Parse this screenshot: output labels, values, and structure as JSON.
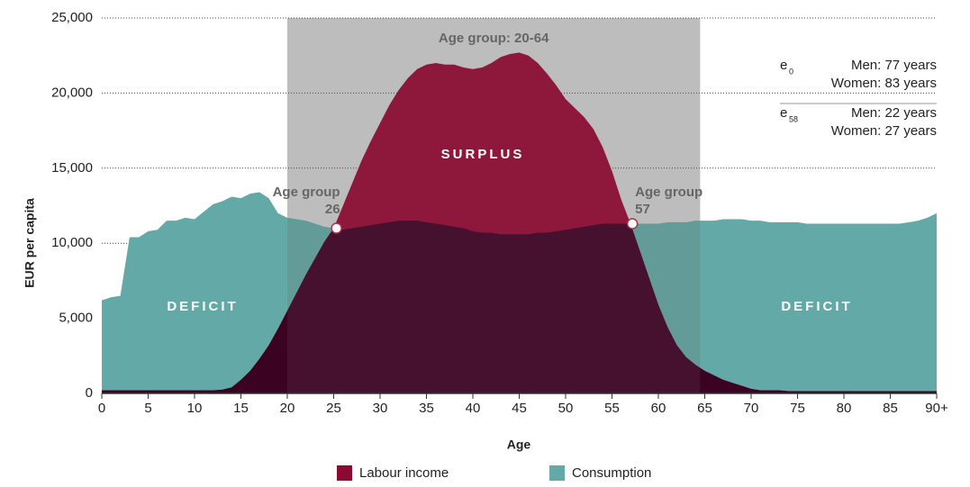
{
  "chart_data": {
    "type": "area",
    "x_label": "Age",
    "y_label": "EUR per capita",
    "x": [
      0,
      1,
      2,
      3,
      4,
      5,
      6,
      7,
      8,
      9,
      10,
      11,
      12,
      13,
      14,
      15,
      16,
      17,
      18,
      19,
      20,
      21,
      22,
      23,
      24,
      25,
      26,
      27,
      28,
      29,
      30,
      31,
      32,
      33,
      34,
      35,
      36,
      37,
      38,
      39,
      40,
      41,
      42,
      43,
      44,
      45,
      46,
      47,
      48,
      49,
      50,
      51,
      52,
      53,
      54,
      55,
      56,
      57,
      58,
      59,
      60,
      61,
      62,
      63,
      64,
      65,
      66,
      67,
      68,
      69,
      70,
      71,
      72,
      73,
      74,
      75,
      76,
      77,
      78,
      79,
      80,
      81,
      82,
      83,
      84,
      85,
      86,
      87,
      88,
      89,
      90
    ],
    "series": [
      {
        "name": "Consumption",
        "color": "#62a9a7",
        "values": [
          6200,
          6400,
          6500,
          10400,
          10400,
          10800,
          10900,
          11500,
          11500,
          11700,
          11600,
          12100,
          12600,
          12800,
          13100,
          13000,
          13300,
          13400,
          13000,
          12000,
          11700,
          11600,
          11500,
          11300,
          11100,
          11000,
          10900,
          11000,
          11100,
          11200,
          11300,
          11400,
          11500,
          11500,
          11500,
          11400,
          11300,
          11200,
          11100,
          11000,
          10800,
          10700,
          10700,
          10600,
          10600,
          10600,
          10600,
          10700,
          10700,
          10800,
          10900,
          11000,
          11100,
          11200,
          11300,
          11300,
          11300,
          11300,
          11300,
          11300,
          11300,
          11400,
          11400,
          11400,
          11500,
          11500,
          11500,
          11600,
          11600,
          11600,
          11500,
          11500,
          11400,
          11400,
          11400,
          11400,
          11300,
          11300,
          11300,
          11300,
          11300,
          11300,
          11300,
          11300,
          11300,
          11300,
          11300,
          11400,
          11500,
          11700,
          12000
        ]
      },
      {
        "name": "Labour income",
        "color": "#8c0a32",
        "values": [
          200,
          200,
          200,
          200,
          200,
          200,
          200,
          200,
          200,
          200,
          200,
          200,
          200,
          250,
          400,
          900,
          1500,
          2300,
          3200,
          4300,
          5500,
          6700,
          7900,
          9000,
          10100,
          11000,
          12500,
          14000,
          15500,
          16800,
          18000,
          19200,
          20200,
          21000,
          21600,
          21900,
          22000,
          21900,
          21900,
          21700,
          21600,
          21700,
          22000,
          22400,
          22600,
          22700,
          22500,
          22000,
          21300,
          20500,
          19600,
          19000,
          18400,
          17600,
          16400,
          14800,
          12900,
          11300,
          9500,
          7700,
          5900,
          4400,
          3200,
          2400,
          1900,
          1500,
          1200,
          900,
          700,
          500,
          300,
          200,
          200,
          200,
          150,
          150,
          150,
          150,
          150,
          150,
          150,
          150,
          150,
          150,
          150,
          150,
          150,
          150,
          150,
          150,
          150
        ]
      }
    ],
    "overlap_color": "#3b0222",
    "xlim": [
      0,
      90
    ],
    "xticks": [
      0,
      5,
      10,
      15,
      20,
      25,
      30,
      35,
      40,
      45,
      50,
      55,
      60,
      65,
      70,
      75,
      80,
      85,
      {
        "value": 90,
        "label": "90+"
      }
    ],
    "ylim": [
      0,
      25000
    ],
    "yticks": [
      0,
      {
        "value": 5000,
        "label": "5,000"
      },
      {
        "value": 10000,
        "label": "10,000"
      },
      {
        "value": 15000,
        "label": "15,000"
      },
      {
        "value": 20000,
        "label": "20,000"
      },
      {
        "value": 25000,
        "label": "25,000"
      }
    ],
    "grid": true,
    "shaded_range": {
      "label": "Age group: 20-64",
      "range": [
        20,
        64.5
      ]
    },
    "surplus_label": "SURPLUS",
    "deficit_labels": [
      "DEFICIT",
      "DEFICIT"
    ],
    "crossings": [
      {
        "label": "Age group",
        "age_label": "26",
        "x": 25.3,
        "y": 11000
      },
      {
        "label": "Age group",
        "age_label": "57",
        "x": 57.2,
        "y": 11300
      }
    ],
    "life_expectancy": [
      {
        "symbol": "e",
        "subscript": "0",
        "men": "Men: 77 years",
        "women": "Women: 83 years"
      },
      {
        "symbol": "e",
        "subscript": "58",
        "men": "Men: 22 years",
        "women": "Women: 27 years"
      }
    ],
    "legend": "bottom"
  }
}
